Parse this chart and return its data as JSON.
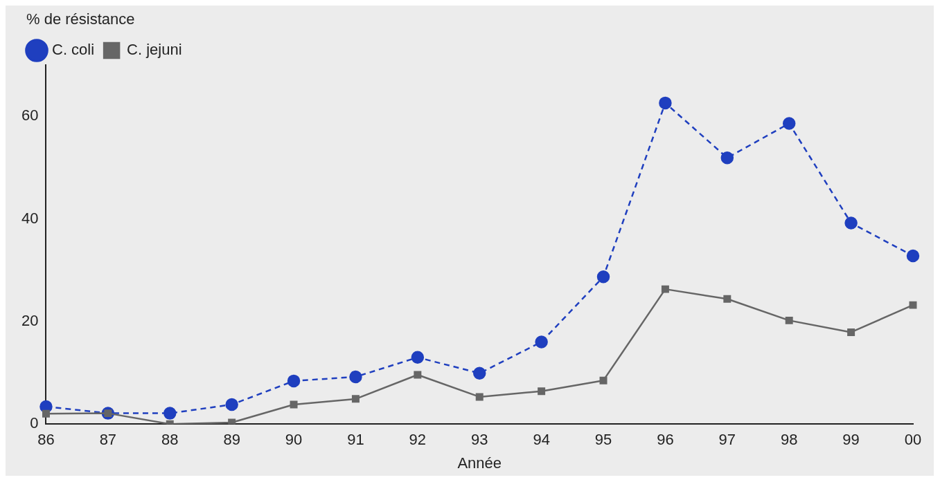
{
  "chart_data": {
    "type": "line",
    "ylabel": "% de résistance",
    "xlabel": "Année",
    "categories": [
      "86",
      "87",
      "88",
      "89",
      "90",
      "91",
      "92",
      "93",
      "94",
      "95",
      "96",
      "97",
      "98",
      "99",
      "00"
    ],
    "ylim": [
      0,
      70
    ],
    "yticks": [
      0,
      20,
      40,
      60
    ],
    "grid": false,
    "legend": "top left",
    "series": [
      {
        "name": "C. coli",
        "color": "#1f3fbf",
        "marker": "circle",
        "line_style": "dashed",
        "values": [
          3.4,
          2.1,
          2.1,
          3.8,
          8.4,
          9.2,
          13,
          9.9,
          16,
          28.7,
          62.6,
          51.9,
          58.6,
          39.2,
          32.8
        ]
      },
      {
        "name": "C. jejuni",
        "color": "#666666",
        "marker": "square",
        "line_style": "solid",
        "values": [
          2,
          2.1,
          0,
          0.3,
          3.8,
          4.9,
          9.6,
          5.3,
          6.4,
          8.5,
          26.3,
          24.4,
          20.2,
          17.9,
          23.2
        ]
      }
    ]
  }
}
